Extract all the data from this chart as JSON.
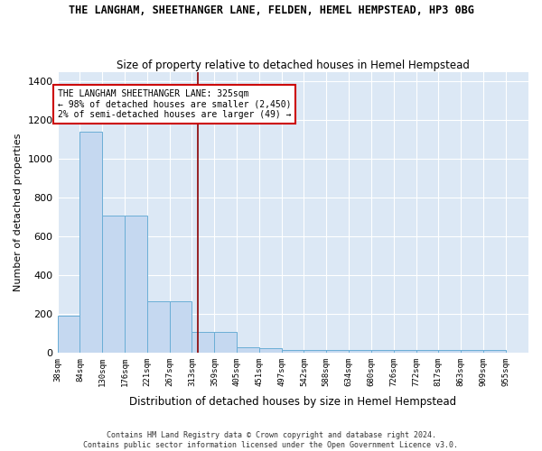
{
  "title": "THE LANGHAM, SHEETHANGER LANE, FELDEN, HEMEL HEMPSTEAD, HP3 0BG",
  "subtitle": "Size of property relative to detached houses in Hemel Hempstead",
  "xlabel": "Distribution of detached houses by size in Hemel Hempstead",
  "ylabel": "Number of detached properties",
  "bin_edges": [
    38,
    84,
    130,
    176,
    221,
    267,
    313,
    359,
    405,
    451,
    497,
    542,
    588,
    634,
    680,
    726,
    772,
    817,
    863,
    909,
    955
  ],
  "bar_heights": [
    190,
    1140,
    710,
    710,
    265,
    265,
    107,
    107,
    28,
    25,
    15,
    15,
    15,
    15,
    15,
    15,
    15,
    15,
    15,
    15
  ],
  "bar_color": "#c5d8f0",
  "bar_edge_color": "#6baed6",
  "fig_bg_color": "#ffffff",
  "plot_bg_color": "#dce8f5",
  "grid_color": "#ffffff",
  "red_line_x": 325,
  "annotation_text": "THE LANGHAM SHEETHANGER LANE: 325sqm\n← 98% of detached houses are smaller (2,450)\n2% of semi-detached houses are larger (49) →",
  "annotation_box_facecolor": "#ffffff",
  "annotation_box_edgecolor": "#cc0000",
  "footer_line1": "Contains HM Land Registry data © Crown copyright and database right 2024.",
  "footer_line2": "Contains public sector information licensed under the Open Government Licence v3.0.",
  "ylim": [
    0,
    1450
  ],
  "yticks": [
    0,
    200,
    400,
    600,
    800,
    1000,
    1200,
    1400
  ]
}
